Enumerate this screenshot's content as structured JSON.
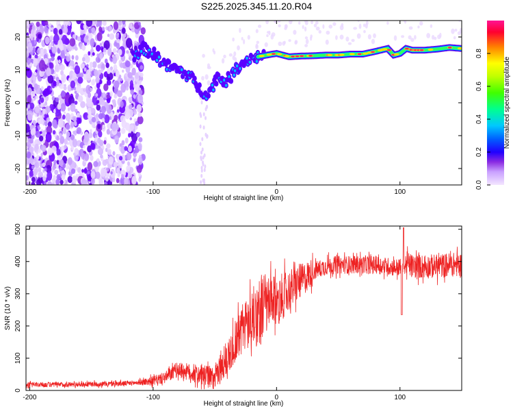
{
  "title": "S225.2025.345.11.20.R04",
  "chart_data": [
    {
      "type": "heatmap",
      "title": "",
      "xlabel": "Height of straight line (km)",
      "ylabel": "Frequency (Hz)",
      "xlim": [
        -203,
        150
      ],
      "ylim": [
        -25,
        25
      ],
      "xticks": [
        -200,
        -100,
        0,
        100
      ],
      "yticks": [
        -20,
        -10,
        0,
        10,
        20
      ],
      "colorbar": {
        "label": "Normalized spectral amplitude",
        "range": [
          0,
          1
        ],
        "ticks": [
          0.0,
          0.2,
          0.4,
          0.6,
          0.8
        ],
        "colors": [
          "#f3e6ff",
          "#c9a0ff",
          "#8a2be2",
          "#5a00ff",
          "#0000ff",
          "#00bfff",
          "#00ff80",
          "#7fff00",
          "#ffff00",
          "#ff8000",
          "#ff0040",
          "#ff1493"
        ]
      },
      "ridge": {
        "x": [
          -115,
          -108,
          -100,
          -90,
          -80,
          -70,
          -62,
          -55,
          -48,
          -42,
          -38,
          -30,
          -22,
          -15,
          -8,
          0,
          10,
          20,
          30,
          40,
          50,
          60,
          70,
          80,
          90,
          95,
          100,
          105,
          110,
          120,
          130,
          140,
          150
        ],
        "y": [
          14.5,
          16.5,
          15.0,
          11.5,
          10.0,
          8.0,
          4.0,
          2.5,
          8.0,
          6.5,
          7.5,
          11.5,
          13.5,
          14.0,
          14.5,
          15.0,
          14.0,
          14.2,
          14.3,
          14.5,
          14.5,
          14.8,
          14.8,
          15.6,
          16.5,
          14.5,
          15.0,
          16.5,
          16.0,
          16.0,
          16.3,
          16.8,
          16.5
        ]
      }
    },
    {
      "type": "line",
      "title": "",
      "xlabel": "Height of straight line (km)",
      "ylabel": "SNR (10 * v/v)",
      "xlim": [
        -203,
        150
      ],
      "ylim": [
        0,
        510
      ],
      "xticks": [
        -200,
        -100,
        0,
        100
      ],
      "yticks": [
        0,
        100,
        200,
        300,
        400,
        500
      ],
      "color": "#ee2222",
      "series": [
        {
          "name": "SNR",
          "x": [
            -203,
            -180,
            -160,
            -140,
            -120,
            -110,
            -100,
            -90,
            -80,
            -70,
            -60,
            -50,
            -45,
            -40,
            -35,
            -30,
            -25,
            -20,
            -15,
            -10,
            -5,
            0,
            10,
            20,
            30,
            40,
            50,
            60,
            70,
            80,
            90,
            100,
            103,
            105,
            110,
            120,
            130,
            140,
            150
          ],
          "y": [
            18,
            18,
            19,
            20,
            22,
            25,
            30,
            40,
            65,
            55,
            45,
            40,
            70,
            100,
            140,
            180,
            205,
            225,
            240,
            255,
            270,
            275,
            310,
            340,
            370,
            385,
            390,
            390,
            390,
            390,
            385,
            380,
            370,
            395,
            385,
            385,
            385,
            390,
            390
          ]
        }
      ]
    }
  ]
}
